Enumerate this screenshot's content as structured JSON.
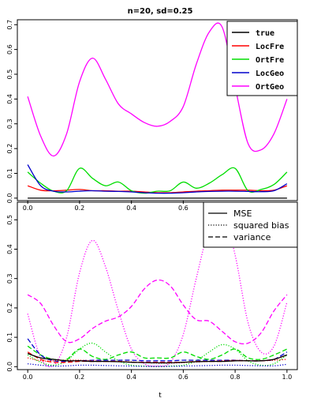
{
  "chart_data": [
    {
      "type": "line",
      "title": "n=20, sd=0.25",
      "xlabel": "",
      "ylabel": "",
      "xlim": [
        -0.04,
        1.04
      ],
      "ylim": [
        -0.01,
        0.72
      ],
      "x_ticks": [
        0.0,
        0.2,
        0.4,
        0.6
      ],
      "x_tick_labels": [
        "0.0",
        "0.2",
        "0.4",
        "0.6"
      ],
      "y_ticks": [
        0.0,
        0.1,
        0.2,
        0.3,
        0.4,
        0.5,
        0.6,
        0.7
      ],
      "y_tick_labels": [
        "0.0",
        "0.1",
        "0.2",
        "0.3",
        "0.4",
        "0.5",
        "0.6",
        "0.7"
      ],
      "legend_position": "top-right",
      "x": [
        0.0,
        0.05,
        0.1,
        0.15,
        0.2,
        0.25,
        0.3,
        0.35,
        0.4,
        0.45,
        0.5,
        0.55,
        0.6,
        0.65,
        0.7,
        0.75,
        0.8,
        0.85,
        0.9,
        0.95,
        1.0
      ],
      "series": [
        {
          "name": "true",
          "color": "#000000",
          "dash": "solid",
          "values": [
            0.0,
            0.0,
            0.0,
            0.0,
            0.0,
            0.0,
            0.0,
            0.0,
            0.0,
            0.0,
            0.0,
            0.0,
            0.0,
            0.0,
            0.0,
            0.0,
            0.0,
            0.0,
            0.0,
            0.0,
            0.0
          ]
        },
        {
          "name": "LocFre",
          "color": "#ff0000",
          "dash": "solid",
          "values": [
            0.05,
            0.032,
            0.03,
            0.032,
            0.035,
            0.03,
            0.03,
            0.028,
            0.028,
            0.025,
            0.022,
            0.022,
            0.025,
            0.028,
            0.03,
            0.032,
            0.032,
            0.032,
            0.03,
            0.032,
            0.05
          ]
        },
        {
          "name": "OrtFre",
          "color": "#00dd00",
          "dash": "solid",
          "values": [
            0.105,
            0.06,
            0.028,
            0.03,
            0.12,
            0.08,
            0.05,
            0.065,
            0.03,
            0.02,
            0.028,
            0.03,
            0.065,
            0.04,
            0.06,
            0.095,
            0.12,
            0.03,
            0.035,
            0.055,
            0.105
          ]
        },
        {
          "name": "LocGeo",
          "color": "#0000cc",
          "dash": "solid",
          "values": [
            0.135,
            0.05,
            0.028,
            0.025,
            0.028,
            0.03,
            0.028,
            0.027,
            0.025,
            0.022,
            0.02,
            0.02,
            0.022,
            0.025,
            0.027,
            0.028,
            0.028,
            0.027,
            0.026,
            0.03,
            0.058
          ]
        },
        {
          "name": "OrtGeo",
          "color": "#ff00ff",
          "dash": "solid",
          "values": [
            0.41,
            0.25,
            0.17,
            0.26,
            0.47,
            0.565,
            0.48,
            0.38,
            0.34,
            0.305,
            0.29,
            0.31,
            0.37,
            0.54,
            0.67,
            0.69,
            0.45,
            0.22,
            0.195,
            0.26,
            0.4
          ]
        }
      ]
    },
    {
      "type": "line",
      "title": "",
      "xlabel": "t",
      "ylabel": "",
      "xlim": [
        -0.04,
        1.04
      ],
      "ylim": [
        -0.01,
        0.56
      ],
      "x_ticks": [
        0.0,
        0.2,
        0.4,
        0.6,
        0.8,
        1.0
      ],
      "x_tick_labels": [
        "0.0",
        "0.2",
        "0.4",
        "0.6",
        "0.8",
        "1.0"
      ],
      "y_ticks": [
        0.0,
        0.1,
        0.2,
        0.3,
        0.4,
        0.5
      ],
      "y_tick_labels": [
        "0.0",
        "0.1",
        "0.2",
        "0.3",
        "0.4",
        "0.5"
      ],
      "legend_position": "top-right",
      "legend": [
        {
          "label": "MSE",
          "dash": "solid"
        },
        {
          "label": "squared bias",
          "dash": "dotted"
        },
        {
          "label": "variance",
          "dash": "dashed"
        }
      ],
      "x": [
        0.0,
        0.05,
        0.1,
        0.15,
        0.2,
        0.25,
        0.3,
        0.35,
        0.4,
        0.45,
        0.5,
        0.55,
        0.6,
        0.65,
        0.7,
        0.75,
        0.8,
        0.85,
        0.9,
        0.95,
        1.0
      ],
      "series": [
        {
          "color": "#ff00ff",
          "dash": "dashed",
          "values": [
            0.245,
            0.215,
            0.14,
            0.085,
            0.095,
            0.13,
            0.155,
            0.17,
            0.205,
            0.265,
            0.295,
            0.275,
            0.21,
            0.16,
            0.155,
            0.12,
            0.085,
            0.08,
            0.115,
            0.19,
            0.245
          ]
        },
        {
          "color": "#ff00ff",
          "dash": "dotted",
          "values": [
            0.18,
            0.03,
            0.005,
            0.1,
            0.32,
            0.43,
            0.34,
            0.19,
            0.06,
            0.01,
            0.002,
            0.015,
            0.11,
            0.3,
            0.47,
            0.53,
            0.38,
            0.15,
            0.05,
            0.07,
            0.22
          ]
        },
        {
          "color": "#00dd00",
          "dash": "dashed",
          "values": [
            0.07,
            0.04,
            0.025,
            0.025,
            0.06,
            0.035,
            0.025,
            0.04,
            0.05,
            0.03,
            0.03,
            0.03,
            0.05,
            0.035,
            0.025,
            0.04,
            0.06,
            0.03,
            0.025,
            0.04,
            0.06
          ]
        },
        {
          "color": "#00dd00",
          "dash": "dotted",
          "values": [
            0.04,
            0.015,
            0.005,
            0.02,
            0.06,
            0.08,
            0.05,
            0.02,
            0.005,
            0.002,
            0.0,
            0.002,
            0.005,
            0.02,
            0.05,
            0.075,
            0.06,
            0.02,
            0.005,
            0.01,
            0.04
          ]
        },
        {
          "color": "#0000cc",
          "dash": "dashed",
          "values": [
            0.095,
            0.04,
            0.02,
            0.018,
            0.02,
            0.022,
            0.022,
            0.022,
            0.022,
            0.02,
            0.02,
            0.02,
            0.022,
            0.022,
            0.022,
            0.022,
            0.022,
            0.02,
            0.02,
            0.025,
            0.05
          ]
        },
        {
          "color": "#0000cc",
          "dash": "dotted",
          "values": [
            0.01,
            0.005,
            0.002,
            0.003,
            0.005,
            0.005,
            0.004,
            0.003,
            0.002,
            0.001,
            0.001,
            0.001,
            0.002,
            0.003,
            0.004,
            0.005,
            0.005,
            0.004,
            0.003,
            0.003,
            0.008
          ]
        },
        {
          "color": "#ff0000",
          "dash": "dashed",
          "values": [
            0.05,
            0.025,
            0.015,
            0.015,
            0.018,
            0.018,
            0.018,
            0.018,
            0.015,
            0.015,
            0.015,
            0.015,
            0.015,
            0.018,
            0.018,
            0.018,
            0.02,
            0.02,
            0.02,
            0.025,
            0.04
          ]
        },
        {
          "color": "#ff0000",
          "dash": "dotted",
          "values": [
            0.03,
            0.02,
            0.02,
            0.022,
            0.022,
            0.02,
            0.018,
            0.018,
            0.016,
            0.014,
            0.012,
            0.012,
            0.014,
            0.016,
            0.018,
            0.02,
            0.022,
            0.02,
            0.02,
            0.022,
            0.025
          ]
        },
        {
          "color": "#000000",
          "dash": "solid",
          "values": [
            0.045,
            0.03,
            0.025,
            0.02,
            0.02,
            0.018,
            0.018,
            0.017,
            0.015,
            0.014,
            0.013,
            0.013,
            0.015,
            0.017,
            0.018,
            0.018,
            0.02,
            0.02,
            0.02,
            0.025,
            0.04
          ]
        }
      ]
    }
  ]
}
